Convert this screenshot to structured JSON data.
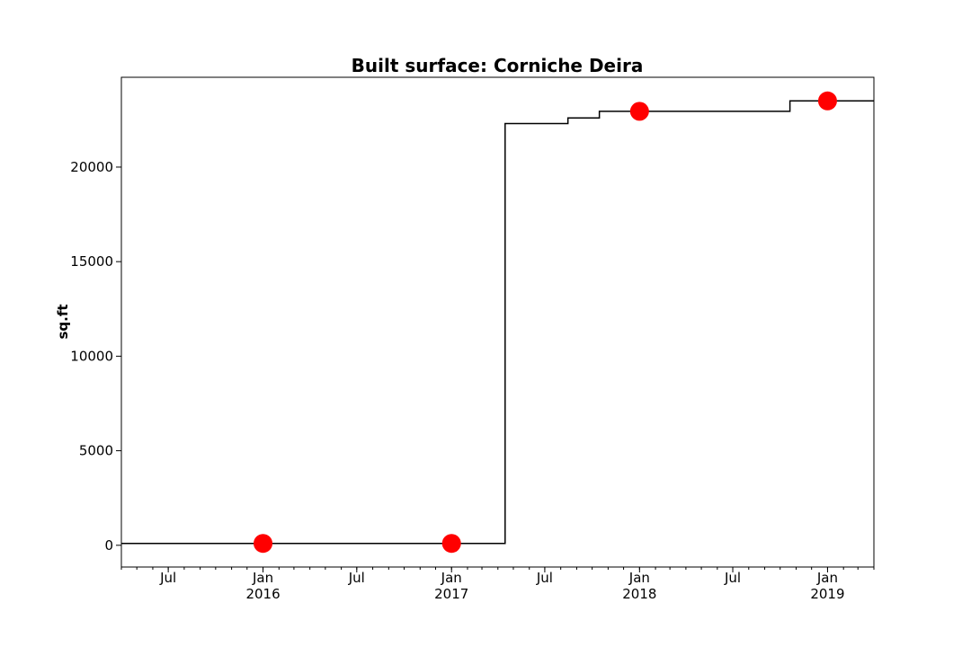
{
  "chart_data": {
    "type": "line",
    "title": "Built surface: Corniche Deira",
    "xlabel": "",
    "ylabel": "sq.ft",
    "xlim": [
      "2015-04-01",
      "2019-04-01"
    ],
    "ylim": [
      -1150,
      24750
    ],
    "grid": false,
    "y_ticks": [
      {
        "value": 0,
        "label": "0"
      },
      {
        "value": 5000,
        "label": "5000"
      },
      {
        "value": 10000,
        "label": "10000"
      },
      {
        "value": 15000,
        "label": "15000"
      },
      {
        "value": 20000,
        "label": "20000"
      }
    ],
    "x_major_ticks": [
      {
        "date": "2015-07-01",
        "label": "Jul",
        "sublabel": ""
      },
      {
        "date": "2016-01-01",
        "label": "Jan",
        "sublabel": "2016"
      },
      {
        "date": "2016-07-01",
        "label": "Jul",
        "sublabel": ""
      },
      {
        "date": "2017-01-01",
        "label": "Jan",
        "sublabel": "2017"
      },
      {
        "date": "2017-07-01",
        "label": "Jul",
        "sublabel": ""
      },
      {
        "date": "2018-01-01",
        "label": "Jan",
        "sublabel": "2018"
      },
      {
        "date": "2018-07-01",
        "label": "Jul",
        "sublabel": ""
      },
      {
        "date": "2019-01-01",
        "label": "Jan",
        "sublabel": "2019"
      }
    ],
    "series": [
      {
        "style": "step",
        "color": "#000000",
        "points": [
          {
            "x": "2015-04-01",
            "y": 100
          },
          {
            "x": "2017-04-15",
            "y": 22300
          },
          {
            "x": "2017-08-15",
            "y": 22600
          },
          {
            "x": "2017-10-15",
            "y": 22950
          },
          {
            "x": "2018-10-20",
            "y": 23500
          },
          {
            "x": "2019-04-01",
            "y": 23500
          }
        ]
      },
      {
        "style": "markers",
        "color": "#ff0000",
        "points": [
          {
            "x": "2016-01-01",
            "y": 100
          },
          {
            "x": "2017-01-01",
            "y": 100
          },
          {
            "x": "2018-01-01",
            "y": 22950
          },
          {
            "x": "2019-01-01",
            "y": 23500
          }
        ]
      }
    ]
  }
}
